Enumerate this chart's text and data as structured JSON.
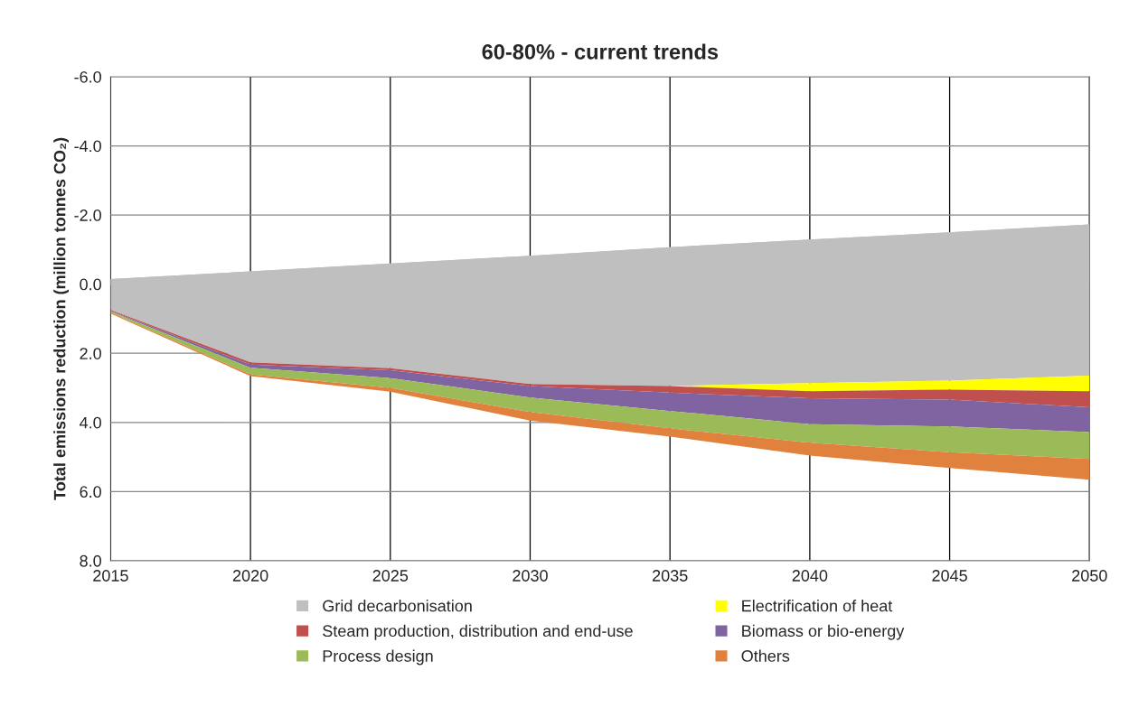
{
  "chart_data": {
    "type": "area",
    "title": "60-80% - current trends",
    "ylabel": "Total emissions reduction (million tonnes CO₂)",
    "x": [
      2015,
      2020,
      2025,
      2030,
      2035,
      2040,
      2045,
      2050
    ],
    "stacked": true,
    "series": [
      {
        "color": "#bfbfbf",
        "values": [
          -0.15,
          -0.37,
          -0.6,
          -0.82,
          -1.07,
          -1.29,
          -1.5,
          -1.73
        ]
      },
      {
        "name": "Grid decarbonisation",
        "color": "#bfbfbf",
        "values": [
          0.9,
          2.63,
          3.03,
          3.71,
          4.02,
          4.15,
          4.29,
          4.38
        ]
      },
      {
        "name": "Electrification of heat",
        "color": "#ffff00",
        "values": [
          0,
          0,
          0,
          0,
          0,
          0.24,
          0.26,
          0.45
        ]
      },
      {
        "name": "Steam production, distribution and end-use",
        "color": "#c0504d",
        "values": [
          0.02,
          0.07,
          0.06,
          0.06,
          0.19,
          0.2,
          0.29,
          0.46
        ]
      },
      {
        "name": "Biomass or bio-energy",
        "color": "#8064a2",
        "values": [
          0.02,
          0.09,
          0.23,
          0.33,
          0.53,
          0.75,
          0.78,
          0.72
        ]
      },
      {
        "name": "Process design",
        "color": "#9bbb59",
        "values": [
          0.03,
          0.19,
          0.28,
          0.42,
          0.5,
          0.54,
          0.74,
          0.78
        ]
      },
      {
        "name": "Others",
        "color": "#e0823d",
        "values": [
          0.03,
          0.05,
          0.11,
          0.25,
          0.24,
          0.37,
          0.46,
          0.6
        ]
      }
    ],
    "xlim": [
      2015,
      2050
    ],
    "xticks": [
      2015,
      2020,
      2025,
      2030,
      2035,
      2040,
      2045,
      2050
    ],
    "ylim": [
      8,
      -6
    ],
    "yticks": [
      {
        "value": -6,
        "label": "-6.0"
      },
      {
        "value": -4,
        "label": "-4.0"
      },
      {
        "value": -2,
        "label": "-2.0"
      },
      {
        "value": 0,
        "label": "0.0"
      },
      {
        "value": 2,
        "label": "2.0"
      },
      {
        "value": 4,
        "label": "4.0"
      },
      {
        "value": 6,
        "label": "6.0"
      },
      {
        "value": 8,
        "label": "8.0"
      }
    ],
    "grid": true,
    "legend": "bottom"
  }
}
